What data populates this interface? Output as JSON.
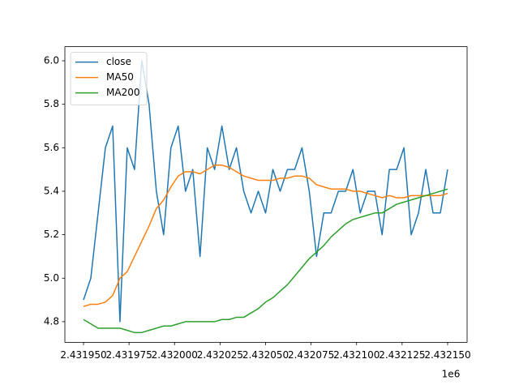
{
  "chart_data": {
    "type": "line",
    "x": [
      2431950,
      2431954,
      2431958,
      2431962,
      2431966,
      2431970,
      2431974,
      2431978,
      2431982,
      2431986,
      2431990,
      2431994,
      2431998,
      2432002,
      2432006,
      2432010,
      2432014,
      2432018,
      2432022,
      2432026,
      2432030,
      2432034,
      2432038,
      2432042,
      2432046,
      2432050,
      2432054,
      2432058,
      2432062,
      2432066,
      2432070,
      2432074,
      2432078,
      2432082,
      2432086,
      2432090,
      2432094,
      2432098,
      2432102,
      2432106,
      2432110,
      2432114,
      2432118,
      2432122,
      2432126,
      2432130,
      2432134,
      2432138,
      2432142,
      2432146,
      2432150
    ],
    "series": [
      {
        "name": "close",
        "color": "#1f77b4",
        "values": [
          4.9,
          5.0,
          5.3,
          5.6,
          5.7,
          4.8,
          5.6,
          5.5,
          6.0,
          5.8,
          5.4,
          5.2,
          5.6,
          5.7,
          5.4,
          5.5,
          5.1,
          5.6,
          5.5,
          5.7,
          5.5,
          5.6,
          5.4,
          5.3,
          5.4,
          5.3,
          5.5,
          5.4,
          5.5,
          5.5,
          5.6,
          5.4,
          5.1,
          5.3,
          5.3,
          5.4,
          5.4,
          5.5,
          5.3,
          5.4,
          5.4,
          5.2,
          5.5,
          5.5,
          5.6,
          5.2,
          5.3,
          5.5,
          5.3,
          5.3,
          5.5
        ]
      },
      {
        "name": "MA50",
        "color": "#ff7f0e",
        "values": [
          4.87,
          4.88,
          4.88,
          4.89,
          4.92,
          5.0,
          5.03,
          5.1,
          5.17,
          5.24,
          5.32,
          5.36,
          5.42,
          5.47,
          5.49,
          5.49,
          5.48,
          5.5,
          5.52,
          5.52,
          5.51,
          5.49,
          5.47,
          5.46,
          5.45,
          5.45,
          5.45,
          5.46,
          5.46,
          5.47,
          5.47,
          5.46,
          5.43,
          5.42,
          5.41,
          5.41,
          5.41,
          5.4,
          5.4,
          5.39,
          5.38,
          5.37,
          5.38,
          5.37,
          5.37,
          5.38,
          5.38,
          5.38,
          5.38,
          5.38,
          5.39
        ]
      },
      {
        "name": "MA200",
        "color": "#2ca02c",
        "values": [
          4.81,
          4.79,
          4.77,
          4.77,
          4.77,
          4.77,
          4.76,
          4.75,
          4.75,
          4.76,
          4.77,
          4.78,
          4.78,
          4.79,
          4.8,
          4.8,
          4.8,
          4.8,
          4.8,
          4.81,
          4.81,
          4.82,
          4.82,
          4.84,
          4.86,
          4.89,
          4.91,
          4.94,
          4.97,
          5.01,
          5.05,
          5.09,
          5.12,
          5.15,
          5.19,
          5.22,
          5.25,
          5.27,
          5.28,
          5.29,
          5.3,
          5.3,
          5.32,
          5.34,
          5.35,
          5.36,
          5.37,
          5.38,
          5.39,
          5.4,
          5.41
        ]
      }
    ],
    "xlim": [
      2431939.75,
      2432160.7
    ],
    "xticks": [
      {
        "value": 2431950,
        "label": "2.431950"
      },
      {
        "value": 2431975,
        "label": "2.431975"
      },
      {
        "value": 2432000,
        "label": "2.432000"
      },
      {
        "value": 2432025,
        "label": "2.432025"
      },
      {
        "value": 2432050,
        "label": "2.432050"
      },
      {
        "value": 2432075,
        "label": "2.432075"
      },
      {
        "value": 2432100,
        "label": "2.432100"
      },
      {
        "value": 2432125,
        "label": "2.432125"
      },
      {
        "value": 2432150,
        "label": "2.432150"
      }
    ],
    "x_offset_label": "1e6",
    "ylim": [
      4.705,
      6.065
    ],
    "yticks": [
      4.8,
      {
        "value": 5,
        "label": "5.0"
      },
      5.2,
      5.4,
      5.6,
      5.8,
      {
        "value": 6,
        "label": "6.0"
      }
    ],
    "grid": false,
    "legend": "upper-left"
  }
}
